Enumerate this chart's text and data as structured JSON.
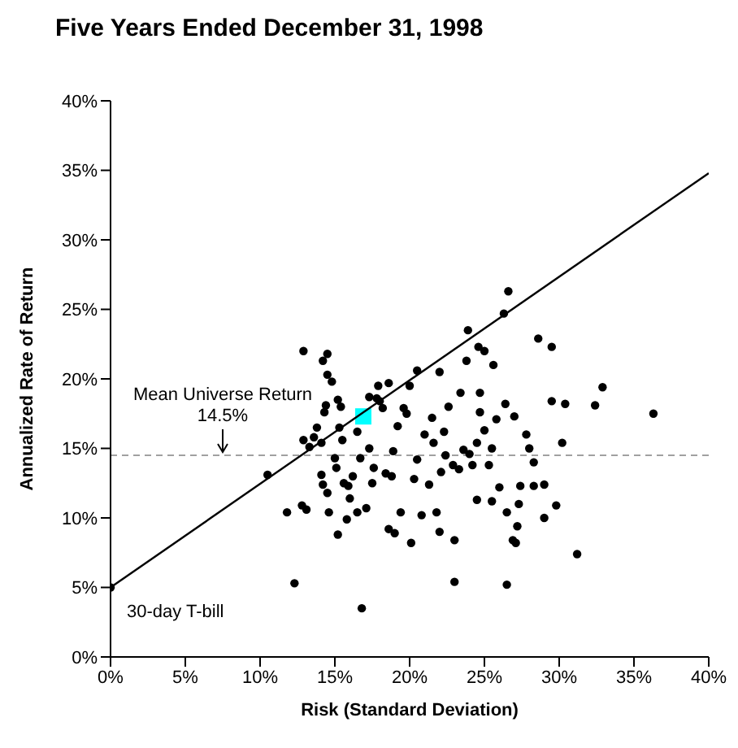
{
  "chart_data": {
    "type": "scatter",
    "title": "Five Years Ended December 31, 1998",
    "xlabel": "Risk (Standard Deviation)",
    "ylabel": "Annualized Rate of Return",
    "xlim": [
      0,
      40
    ],
    "ylim": [
      0,
      40
    ],
    "xticks": [
      {
        "value": 0,
        "label": "0%"
      },
      {
        "value": 5,
        "label": "5%"
      },
      {
        "value": 10,
        "label": "10%"
      },
      {
        "value": 15,
        "label": "15%"
      },
      {
        "value": 20,
        "label": "20%"
      },
      {
        "value": 25,
        "label": "25%"
      },
      {
        "value": 30,
        "label": "30%"
      },
      {
        "value": 35,
        "label": "35%"
      },
      {
        "value": 40,
        "label": "40%"
      }
    ],
    "yticks": [
      {
        "value": 0,
        "label": "0%"
      },
      {
        "value": 5,
        "label": "5%"
      },
      {
        "value": 10,
        "label": "10%"
      },
      {
        "value": 15,
        "label": "15%"
      },
      {
        "value": 20,
        "label": "20%"
      },
      {
        "value": 25,
        "label": "25%"
      },
      {
        "value": 30,
        "label": "30%"
      },
      {
        "value": 35,
        "label": "35%"
      },
      {
        "value": 40,
        "label": "40%"
      }
    ],
    "grid": false,
    "legend": false,
    "series": [
      {
        "type": "scatter",
        "marker": "circle",
        "color": "#000000",
        "x": [
          0,
          10.5,
          11.8,
          12.3,
          12.8,
          13.1,
          12.9,
          13.3,
          13.6,
          13.8,
          14.1,
          14.1,
          14.2,
          14.5,
          14.6,
          14.3,
          14.4,
          14.5,
          14.8,
          14.5,
          14.2,
          15.0,
          15.1,
          15.2,
          15.3,
          15.5,
          15.6,
          15.4,
          15.2,
          15.8,
          15.9,
          16.0,
          16.2,
          16.5,
          16.5,
          16.7,
          16.8,
          17.1,
          17.3,
          17.5,
          17.6,
          17.8,
          17.9,
          18.0,
          18.2,
          18.4,
          18.6,
          18.8,
          18.9,
          19.0,
          19.2,
          19.4,
          19.8,
          20.0,
          20.3,
          20.5,
          20.1,
          20.5,
          20.8,
          21.0,
          21.3,
          21.5,
          21.6,
          21.8,
          22.0,
          22.1,
          22.0,
          22.3,
          22.4,
          22.6,
          22.9,
          23.0,
          23.0,
          23.3,
          23.4,
          23.6,
          24.0,
          24.2,
          24.5,
          24.5,
          24.7,
          24.7,
          25.3,
          25.5,
          25.0,
          25.5,
          25.8,
          26.0,
          26.5,
          26.3,
          26.6,
          26.9,
          27.1,
          27.2,
          27.4,
          27.3,
          27.8,
          28.0,
          28.3,
          28.3,
          28.6,
          29.0,
          29.5,
          29.0,
          29.5,
          29.8,
          30.2,
          30.4,
          31.2,
          32.4,
          32.9,
          36.3,
          26.5,
          25.6,
          25.0,
          23.8,
          24.6,
          27.0,
          26.4,
          23.9,
          19.6,
          18.6,
          17.3,
          12.9
        ],
        "values": [
          5,
          13.1,
          10.4,
          5.3,
          10.9,
          10.6,
          15.6,
          15.1,
          15.8,
          16.5,
          13.1,
          15.4,
          12.4,
          11.8,
          10.4,
          17.6,
          18.1,
          21.8,
          19.8,
          20.3,
          21.3,
          14.3,
          13.6,
          8.8,
          16.5,
          15.6,
          12.5,
          18.0,
          18.5,
          9.9,
          12.3,
          11.4,
          13.0,
          10.4,
          16.2,
          14.3,
          3.5,
          10.7,
          15.0,
          12.5,
          13.6,
          18.6,
          19.5,
          18.4,
          17.9,
          13.2,
          9.2,
          13.0,
          14.8,
          8.9,
          16.6,
          10.4,
          17.5,
          19.5,
          12.8,
          20.6,
          8.2,
          14.2,
          10.2,
          16.0,
          12.4,
          17.2,
          15.4,
          10.4,
          9.0,
          13.3,
          20.5,
          16.2,
          14.5,
          18.0,
          13.8,
          5.4,
          8.4,
          13.5,
          19.0,
          14.9,
          14.6,
          13.8,
          11.3,
          15.4,
          19.0,
          17.6,
          13.8,
          15.0,
          16.3,
          11.2,
          17.1,
          12.2,
          10.4,
          24.7,
          26.3,
          8.4,
          8.2,
          9.4,
          12.3,
          11.0,
          16.0,
          15.0,
          14.0,
          12.3,
          22.9,
          12.4,
          18.4,
          10.0,
          22.3,
          10.9,
          15.4,
          18.2,
          7.4,
          18.1,
          19.4,
          17.5,
          5.2,
          21.0,
          22.0,
          21.3,
          22.3,
          17.3,
          18.2,
          23.5,
          17.9,
          19.7,
          18.7,
          22.0
        ]
      },
      {
        "type": "scatter",
        "marker": "square",
        "color": "#00ffff",
        "x": [
          16.9
        ],
        "values": [
          17.3
        ]
      },
      {
        "type": "line",
        "marker": "none",
        "line_style": "solid",
        "color": "#000000",
        "x": [
          0,
          40
        ],
        "values": [
          5,
          34.8
        ]
      }
    ],
    "ref_lines": [
      {
        "axis": "y",
        "value": 14.5,
        "color": "#a0a0a0",
        "line_style": "dashed"
      }
    ],
    "annotations": [
      {
        "text": "Mean Universe Return\n14.5%",
        "x": 7.5,
        "y": 14.5
      },
      {
        "text": "30-day T-bill",
        "x": 0,
        "y": 5
      }
    ]
  }
}
